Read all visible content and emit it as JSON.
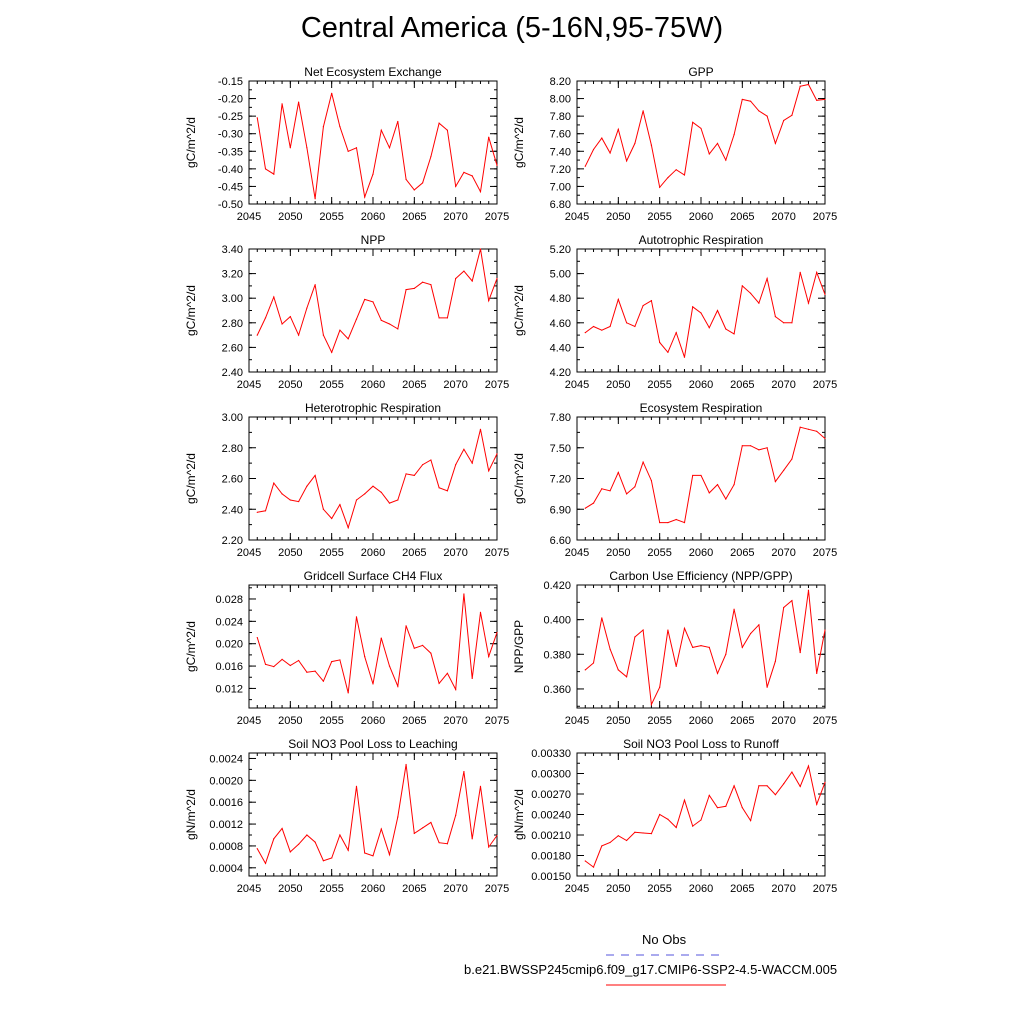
{
  "title": "Central America (5-16N,95-75W)",
  "legend": {
    "obs_label": "No Obs",
    "obs_color": "#5555dd",
    "model_label": "b.e21.BWSSP245cmip6.f09_g17.CMIP6-SSP2-4.5-WACCM.005",
    "model_color": "#ff0000"
  },
  "chart_data": [
    {
      "type": "line",
      "title": "Net Ecosystem Exchange",
      "ylabel": "gC/m^2/d",
      "x": [
        2046,
        2047,
        2048,
        2049,
        2050,
        2051,
        2052,
        2053,
        2054,
        2055,
        2056,
        2057,
        2058,
        2059,
        2060,
        2061,
        2062,
        2063,
        2064,
        2065,
        2066,
        2067,
        2068,
        2069,
        2070,
        2071,
        2072,
        2073,
        2074,
        2075
      ],
      "values": [
        -0.255,
        -0.4,
        -0.415,
        -0.215,
        -0.34,
        -0.21,
        -0.34,
        -0.485,
        -0.28,
        -0.185,
        -0.28,
        -0.35,
        -0.34,
        -0.48,
        -0.415,
        -0.29,
        -0.34,
        -0.265,
        -0.43,
        -0.46,
        -0.44,
        -0.365,
        -0.27,
        -0.29,
        -0.45,
        -0.41,
        -0.42,
        -0.465,
        -0.31,
        -0.39
      ],
      "xlim": [
        2045,
        2075
      ],
      "ylim": [
        -0.5,
        -0.15
      ],
      "xticks": [
        2045,
        2050,
        2055,
        2060,
        2065,
        2070,
        2075
      ],
      "yticks": [
        "-0.15",
        "-0.20",
        "-0.25",
        "-0.30",
        "-0.35",
        "-0.40",
        "-0.45",
        "-0.50"
      ]
    },
    {
      "type": "line",
      "title": "GPP",
      "ylabel": "gC/m^2/d",
      "x": [
        2046,
        2047,
        2048,
        2049,
        2050,
        2051,
        2052,
        2053,
        2054,
        2055,
        2056,
        2057,
        2058,
        2059,
        2060,
        2061,
        2062,
        2063,
        2064,
        2065,
        2066,
        2067,
        2068,
        2069,
        2070,
        2071,
        2072,
        2073,
        2074,
        2075
      ],
      "values": [
        7.23,
        7.42,
        7.55,
        7.38,
        7.65,
        7.29,
        7.49,
        7.86,
        7.47,
        6.99,
        7.1,
        7.19,
        7.13,
        7.73,
        7.66,
        7.37,
        7.49,
        7.3,
        7.59,
        7.99,
        7.97,
        7.86,
        7.8,
        7.49,
        7.75,
        7.81,
        8.14,
        8.16,
        7.98,
        7.99
      ],
      "xlim": [
        2045,
        2075
      ],
      "ylim": [
        6.8,
        8.2
      ],
      "xticks": [
        2045,
        2050,
        2055,
        2060,
        2065,
        2070,
        2075
      ],
      "yticks": [
        "8.20",
        "8.00",
        "7.80",
        "7.60",
        "7.40",
        "7.20",
        "7.00",
        "6.80"
      ]
    },
    {
      "type": "line",
      "title": "NPP",
      "ylabel": "gC/m^2/d",
      "x": [
        2046,
        2047,
        2048,
        2049,
        2050,
        2051,
        2052,
        2053,
        2054,
        2055,
        2056,
        2057,
        2058,
        2059,
        2060,
        2061,
        2062,
        2063,
        2064,
        2065,
        2066,
        2067,
        2068,
        2069,
        2070,
        2071,
        2072,
        2073,
        2074,
        2075
      ],
      "values": [
        2.7,
        2.84,
        3.01,
        2.79,
        2.85,
        2.7,
        2.92,
        3.11,
        2.7,
        2.56,
        2.74,
        2.67,
        2.83,
        2.99,
        2.97,
        2.82,
        2.79,
        2.75,
        3.07,
        3.08,
        3.13,
        3.11,
        2.84,
        2.84,
        3.16,
        3.22,
        3.14,
        3.4,
        2.98,
        3.16
      ],
      "xlim": [
        2045,
        2075
      ],
      "ylim": [
        2.4,
        3.4
      ],
      "xticks": [
        2045,
        2050,
        2055,
        2060,
        2065,
        2070,
        2075
      ],
      "yticks": [
        "3.40",
        "3.20",
        "3.00",
        "2.80",
        "2.60",
        "2.40"
      ]
    },
    {
      "type": "line",
      "title": "Autotrophic Respiration",
      "ylabel": "gC/m^2/d",
      "x": [
        2046,
        2047,
        2048,
        2049,
        2050,
        2051,
        2052,
        2053,
        2054,
        2055,
        2056,
        2057,
        2058,
        2059,
        2060,
        2061,
        2062,
        2063,
        2064,
        2065,
        2066,
        2067,
        2068,
        2069,
        2070,
        2071,
        2072,
        2073,
        2074,
        2075
      ],
      "values": [
        4.52,
        4.57,
        4.54,
        4.57,
        4.79,
        4.6,
        4.57,
        4.74,
        4.78,
        4.44,
        4.36,
        4.52,
        4.32,
        4.73,
        4.68,
        4.56,
        4.7,
        4.55,
        4.51,
        4.9,
        4.84,
        4.76,
        4.96,
        4.65,
        4.6,
        4.6,
        5.01,
        4.76,
        5.01,
        4.83
      ],
      "xlim": [
        2045,
        2075
      ],
      "ylim": [
        4.2,
        5.2
      ],
      "xticks": [
        2045,
        2050,
        2055,
        2060,
        2065,
        2070,
        2075
      ],
      "yticks": [
        "5.20",
        "5.00",
        "4.80",
        "4.60",
        "4.40",
        "4.20"
      ]
    },
    {
      "type": "line",
      "title": "Heterotrophic Respiration",
      "ylabel": "gC/m^2/d",
      "x": [
        2046,
        2047,
        2048,
        2049,
        2050,
        2051,
        2052,
        2053,
        2054,
        2055,
        2056,
        2057,
        2058,
        2059,
        2060,
        2061,
        2062,
        2063,
        2064,
        2065,
        2066,
        2067,
        2068,
        2069,
        2070,
        2071,
        2072,
        2073,
        2074,
        2075
      ],
      "values": [
        2.38,
        2.39,
        2.57,
        2.5,
        2.46,
        2.45,
        2.55,
        2.62,
        2.4,
        2.34,
        2.43,
        2.28,
        2.46,
        2.5,
        2.55,
        2.51,
        2.44,
        2.46,
        2.63,
        2.62,
        2.69,
        2.72,
        2.54,
        2.52,
        2.69,
        2.79,
        2.7,
        2.92,
        2.65,
        2.76
      ],
      "xlim": [
        2045,
        2075
      ],
      "ylim": [
        2.2,
        3.0
      ],
      "xticks": [
        2045,
        2050,
        2055,
        2060,
        2065,
        2070,
        2075
      ],
      "yticks": [
        "3.00",
        "2.80",
        "2.60",
        "2.40",
        "2.20"
      ]
    },
    {
      "type": "line",
      "title": "Ecosystem Respiration",
      "ylabel": "gC/m^2/d",
      "x": [
        2046,
        2047,
        2048,
        2049,
        2050,
        2051,
        2052,
        2053,
        2054,
        2055,
        2056,
        2057,
        2058,
        2059,
        2060,
        2061,
        2062,
        2063,
        2064,
        2065,
        2066,
        2067,
        2068,
        2069,
        2070,
        2071,
        2072,
        2073,
        2074,
        2075
      ],
      "values": [
        6.91,
        6.96,
        7.1,
        7.08,
        7.26,
        7.05,
        7.12,
        7.36,
        7.18,
        6.77,
        6.77,
        6.8,
        6.77,
        7.23,
        7.23,
        7.06,
        7.14,
        7.0,
        7.14,
        7.52,
        7.52,
        7.48,
        7.5,
        7.17,
        7.28,
        7.39,
        7.7,
        7.68,
        7.66,
        7.59
      ],
      "xlim": [
        2045,
        2075
      ],
      "ylim": [
        6.6,
        7.8
      ],
      "xticks": [
        2045,
        2050,
        2055,
        2060,
        2065,
        2070,
        2075
      ],
      "yticks": [
        "7.80",
        "7.50",
        "7.20",
        "6.90",
        "6.60"
      ]
    },
    {
      "type": "line",
      "title": "Gridcell Surface CH4 Flux",
      "ylabel": "gC/m^2/d",
      "x": [
        2046,
        2047,
        2048,
        2049,
        2050,
        2051,
        2052,
        2053,
        2054,
        2055,
        2056,
        2057,
        2058,
        2059,
        2060,
        2061,
        2062,
        2063,
        2064,
        2065,
        2066,
        2067,
        2068,
        2069,
        2070,
        2071,
        2072,
        2073,
        2074,
        2075
      ],
      "values": [
        0.0211,
        0.0163,
        0.0159,
        0.0172,
        0.0161,
        0.017,
        0.0149,
        0.0151,
        0.0133,
        0.0168,
        0.0171,
        0.0112,
        0.0248,
        0.0177,
        0.0128,
        0.021,
        0.016,
        0.0124,
        0.0232,
        0.0192,
        0.0197,
        0.0183,
        0.0129,
        0.0147,
        0.0118,
        0.0289,
        0.0138,
        0.0256,
        0.0177,
        0.022
      ],
      "xlim": [
        2045,
        2075
      ],
      "ylim": [
        0.0085,
        0.0305
      ],
      "xticks": [
        2045,
        2050,
        2055,
        2060,
        2065,
        2070,
        2075
      ],
      "yticks": [
        "0.028",
        "0.024",
        "0.020",
        "0.016",
        "0.012"
      ]
    },
    {
      "type": "line",
      "title": "Carbon Use Efficiency (NPP/GPP)",
      "ylabel": "NPP/GPP",
      "x": [
        2046,
        2047,
        2048,
        2049,
        2050,
        2051,
        2052,
        2053,
        2054,
        2055,
        2056,
        2057,
        2058,
        2059,
        2060,
        2061,
        2062,
        2063,
        2064,
        2065,
        2066,
        2067,
        2068,
        2069,
        2070,
        2071,
        2072,
        2073,
        2074,
        2075
      ],
      "values": [
        0.371,
        0.375,
        0.401,
        0.383,
        0.371,
        0.367,
        0.39,
        0.394,
        0.351,
        0.361,
        0.394,
        0.373,
        0.395,
        0.384,
        0.385,
        0.384,
        0.369,
        0.38,
        0.406,
        0.384,
        0.392,
        0.397,
        0.361,
        0.376,
        0.407,
        0.411,
        0.381,
        0.417,
        0.369,
        0.394
      ],
      "xlim": [
        2045,
        2075
      ],
      "ylim": [
        0.349,
        0.42
      ],
      "xticks": [
        2045,
        2050,
        2055,
        2060,
        2065,
        2070,
        2075
      ],
      "yticks": [
        "0.420",
        "0.400",
        "0.380",
        "0.360"
      ]
    },
    {
      "type": "line",
      "title": "Soil NO3 Pool Loss to Leaching",
      "ylabel": "gN/m^2/d",
      "x": [
        2046,
        2047,
        2048,
        2049,
        2050,
        2051,
        2052,
        2053,
        2054,
        2055,
        2056,
        2057,
        2058,
        2059,
        2060,
        2061,
        2062,
        2063,
        2064,
        2065,
        2066,
        2067,
        2068,
        2069,
        2070,
        2071,
        2072,
        2073,
        2074,
        2075
      ],
      "values": [
        0.00075,
        0.00048,
        0.00093,
        0.00112,
        0.00069,
        0.00083,
        0.001,
        0.00087,
        0.00053,
        0.00058,
        0.001,
        0.00072,
        0.00189,
        0.00067,
        0.00062,
        0.00111,
        0.00064,
        0.00133,
        0.00229,
        0.00103,
        0.00113,
        0.00123,
        0.00086,
        0.00084,
        0.00136,
        0.00216,
        0.00093,
        0.00189,
        0.00078,
        0.00099
      ],
      "xlim": [
        2045,
        2075
      ],
      "ylim": [
        0.00025,
        0.0025
      ],
      "xticks": [
        2045,
        2050,
        2055,
        2060,
        2065,
        2070,
        2075
      ],
      "yticks": [
        "0.0024",
        "0.0020",
        "0.0016",
        "0.0012",
        "0.0008",
        "0.0004"
      ]
    },
    {
      "type": "line",
      "title": "Soil NO3 Pool Loss to Runoff",
      "ylabel": "gN/m^2/d",
      "x": [
        2046,
        2047,
        2048,
        2049,
        2050,
        2051,
        2052,
        2053,
        2054,
        2055,
        2056,
        2057,
        2058,
        2059,
        2060,
        2061,
        2062,
        2063,
        2064,
        2065,
        2066,
        2067,
        2068,
        2069,
        2070,
        2071,
        2072,
        2073,
        2074,
        2075
      ],
      "values": [
        0.00172,
        0.00163,
        0.00194,
        0.00199,
        0.00209,
        0.00202,
        0.00214,
        0.00213,
        0.00212,
        0.0024,
        0.00233,
        0.00221,
        0.00261,
        0.00223,
        0.00232,
        0.00268,
        0.0025,
        0.00252,
        0.00282,
        0.0025,
        0.00231,
        0.00282,
        0.00282,
        0.00269,
        0.00285,
        0.00302,
        0.00281,
        0.00311,
        0.00255,
        0.00287
      ],
      "xlim": [
        2045,
        2075
      ],
      "ylim": [
        0.0015,
        0.0033
      ],
      "xticks": [
        2045,
        2050,
        2055,
        2060,
        2065,
        2070,
        2075
      ],
      "yticks": [
        "0.00330",
        "0.00300",
        "0.00270",
        "0.00240",
        "0.00210",
        "0.00180",
        "0.00150"
      ]
    }
  ]
}
